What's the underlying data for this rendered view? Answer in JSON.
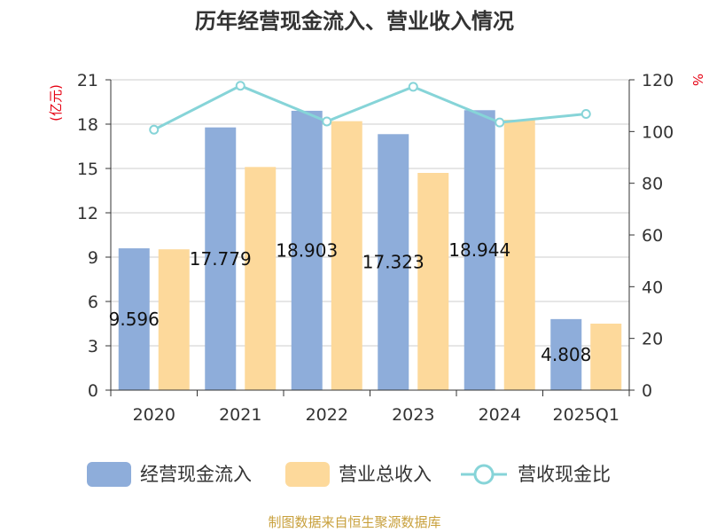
{
  "chart_data": {
    "type": "bar",
    "title": "历年经营现金流入、营业收入情况",
    "categories": [
      "2020",
      "2021",
      "2022",
      "2023",
      "2024",
      "2025Q1"
    ],
    "series": [
      {
        "name": "经营现金流入",
        "kind": "bar",
        "axis": "left",
        "color": "#8eadda",
        "values": [
          9.596,
          17.779,
          18.903,
          17.323,
          18.944,
          4.808
        ],
        "labels": [
          "9.596",
          "17.779",
          "18.903",
          "17.323",
          "18.944",
          "4.808"
        ]
      },
      {
        "name": "营业总收入",
        "kind": "bar",
        "axis": "left",
        "color": "#fdd99b",
        "values": [
          9.53,
          15.1,
          18.2,
          14.7,
          18.3,
          4.5
        ]
      },
      {
        "name": "营收现金比",
        "kind": "line",
        "axis": "right",
        "color": "#86d4d8",
        "values": [
          100.7,
          117.7,
          103.9,
          117.3,
          103.5,
          106.8
        ]
      }
    ],
    "y_left": {
      "label": "(亿元)",
      "range": [
        0,
        21
      ],
      "ticks": [
        "0",
        "3",
        "6",
        "9",
        "12",
        "15",
        "18",
        "21"
      ]
    },
    "y_right": {
      "label": "%",
      "range": [
        0,
        120
      ],
      "ticks": [
        "0",
        "20",
        "40",
        "60",
        "80",
        "100",
        "120"
      ]
    },
    "grid": true,
    "legend": "bottom"
  },
  "source": "制图数据来自恒生聚源数据库"
}
